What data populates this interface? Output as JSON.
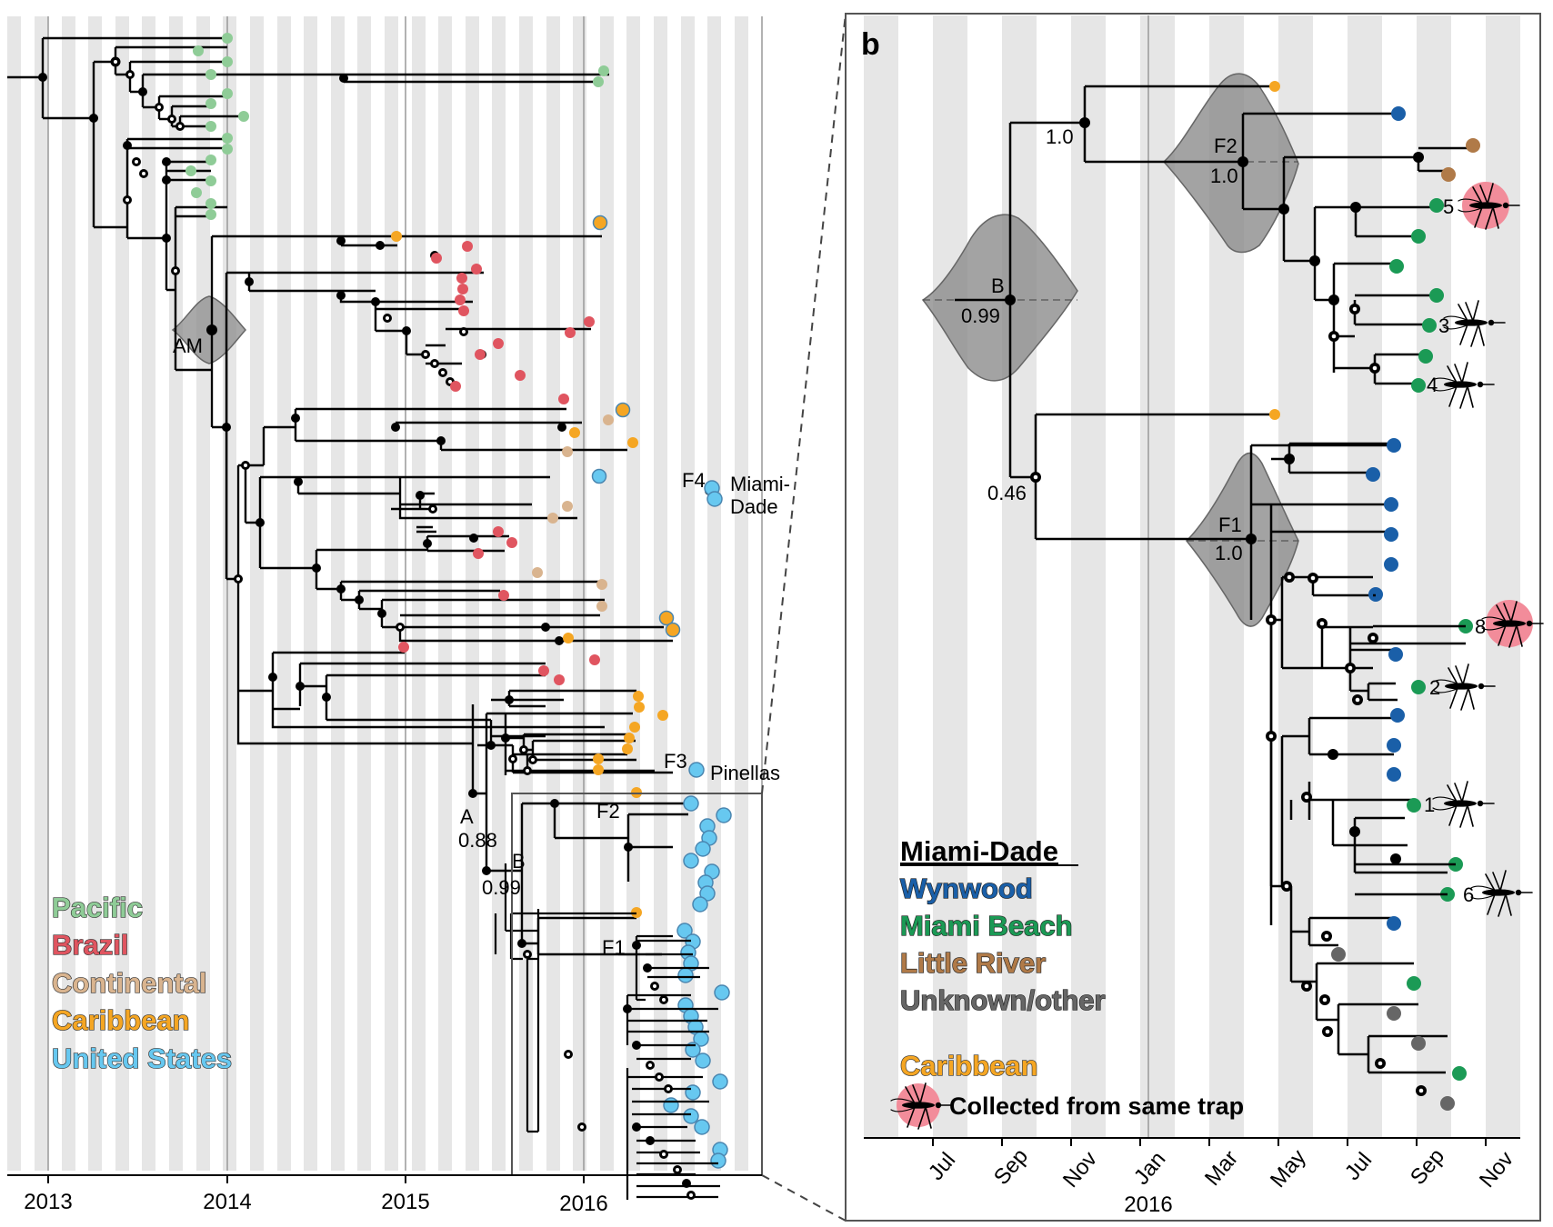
{
  "panel_b": {
    "letter": "b"
  },
  "axis_a": {
    "ticks": [
      "2013",
      "2014",
      "2015",
      "2016"
    ]
  },
  "axis_b": {
    "months": [
      "Jul",
      "Sep",
      "Nov",
      "Jan",
      "Mar",
      "May",
      "Jul",
      "Sep",
      "Nov"
    ],
    "year": "2016"
  },
  "nodes_a": {
    "am": "AM",
    "a": "A",
    "a_support": "0.88",
    "b": "B",
    "b_support": "0.99",
    "f2": "F2",
    "f1": "F1",
    "f3": "F3",
    "f3_place": "Pinellas",
    "f4": "F4",
    "f4_place_1": "Miami-",
    "f4_place_2": "Dade"
  },
  "nodes_b": {
    "top_support": "1.0",
    "f2": "F2",
    "f2_support": "1.0",
    "b": "B",
    "b_support": "0.99",
    "f1": "F1",
    "f1_support": "1.0",
    "low_support": "0.46"
  },
  "traps": [
    "5",
    "3",
    "4",
    "8",
    "2",
    "1",
    "6"
  ],
  "legend_a": [
    {
      "label": "Pacific",
      "color": "#8fcc97"
    },
    {
      "label": "Brazil",
      "color": "#e05560"
    },
    {
      "label": "Continental",
      "color": "#d9b48f"
    },
    {
      "label": "Caribbean",
      "color": "#f5a623"
    },
    {
      "label": "United States",
      "color": "#67c8f0"
    }
  ],
  "legend_b": {
    "title": "Miami-Dade",
    "items": [
      {
        "label": "Wynwood",
        "color": "#1a5fa8"
      },
      {
        "label": "Miami Beach",
        "color": "#1b9a55"
      },
      {
        "label": "Little River",
        "color": "#b07a48"
      },
      {
        "label": "Unknown/other",
        "color": "#666666"
      }
    ],
    "caribbean": {
      "label": "Caribbean",
      "color": "#f5a623"
    },
    "trap_label": "Collected from same trap"
  }
}
